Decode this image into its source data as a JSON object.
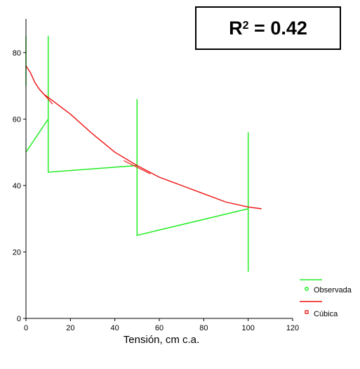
{
  "annotation": {
    "symbol": "R",
    "power": "2",
    "equals": " = ",
    "value": "0.42"
  },
  "colors": {
    "observed": "#22ee22",
    "fitted": "#ee1111",
    "axis": "#000000"
  },
  "chart_data": {
    "type": "line",
    "title": "",
    "xlabel": "Tensión, cm  c.a.",
    "ylabel": "",
    "xlim": [
      0,
      120
    ],
    "ylim": [
      0,
      88
    ],
    "xticks": [
      "0",
      "20",
      "40",
      "60",
      "80",
      "100",
      "120"
    ],
    "yticks": [
      "0",
      "20",
      "40",
      "60",
      "80"
    ],
    "xtick_values": [
      0,
      20,
      40,
      60,
      80,
      100,
      120
    ],
    "ytick_values": [
      0,
      20,
      40,
      60,
      80
    ],
    "legend_position": "bottom-right",
    "series": [
      {
        "name": "Observada",
        "values": [
          [
            0,
            50
          ],
          [
            10,
            60
          ],
          [
            10,
            85
          ],
          [
            10,
            44
          ],
          [
            50,
            46
          ],
          [
            50,
            66
          ],
          [
            50,
            25
          ],
          [
            100,
            33
          ],
          [
            100,
            56
          ],
          [
            100,
            14
          ]
        ],
        "extra_segment": [
          [
            0,
            85
          ],
          [
            0,
            70
          ]
        ]
      },
      {
        "name": "Cúbica",
        "values": [
          [
            0,
            76
          ],
          [
            2,
            74
          ],
          [
            4,
            71
          ],
          [
            6,
            69
          ],
          [
            8,
            67.5
          ],
          [
            10,
            66.5
          ],
          [
            20,
            61.5
          ],
          [
            30,
            55.5
          ],
          [
            40,
            50
          ],
          [
            50,
            46
          ],
          [
            60,
            42.5
          ],
          [
            70,
            40
          ],
          [
            80,
            37.5
          ],
          [
            90,
            35
          ],
          [
            100,
            33.5
          ],
          [
            106,
            33
          ]
        ],
        "tangents": [
          [
            [
              6,
              69
            ],
            [
              12,
              64.5
            ]
          ],
          [
            [
              44,
              47.5
            ],
            [
              56,
              43.5
            ]
          ]
        ]
      }
    ]
  }
}
